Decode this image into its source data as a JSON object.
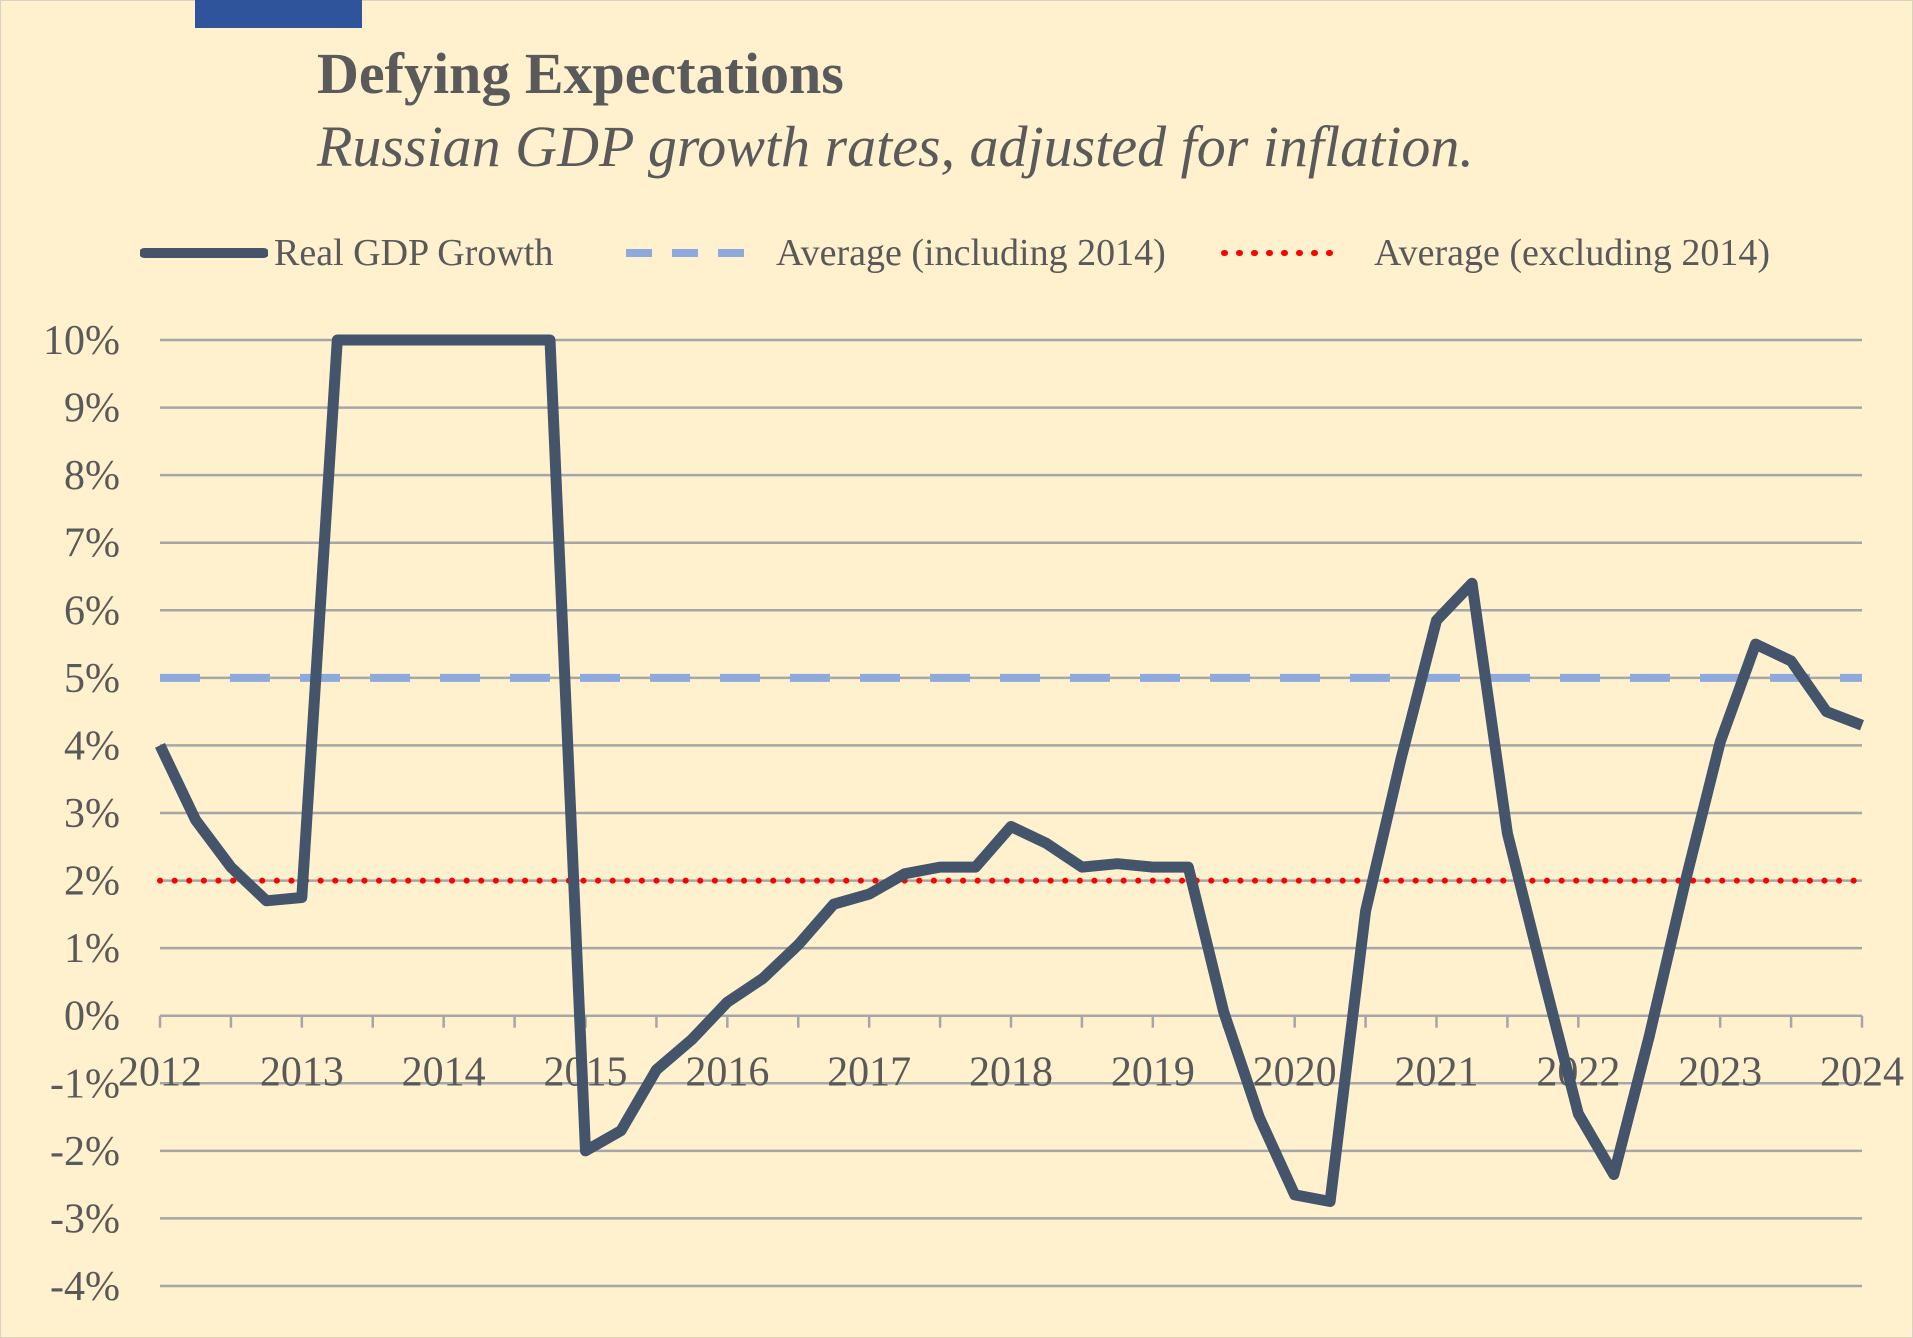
{
  "title": "Defying Expectations",
  "subtitle": "Russian GDP growth rates, adjusted for inflation.",
  "colors": {
    "background": "#FFF1CE",
    "accent_bar": "#2F549B",
    "series_line": "#44546A",
    "average_including": "#8EA9DB",
    "average_excluding": "#FF0000",
    "gridline": "#A6A6A6"
  },
  "chart_data": {
    "type": "line",
    "legend_placement": "top",
    "grid": true,
    "ylim": [
      -4,
      10
    ],
    "xlim": [
      2012,
      2024
    ],
    "y_ticks": [
      "10%",
      "9%",
      "8%",
      "7%",
      "6%",
      "5%",
      "4%",
      "3%",
      "2%",
      "1%",
      "0%",
      "-1%",
      "-2%",
      "-3%",
      "-4%"
    ],
    "y_tick_values": [
      10,
      9,
      8,
      7,
      6,
      5,
      4,
      3,
      2,
      1,
      0,
      -1,
      -2,
      -3,
      -4
    ],
    "x_ticks": [
      "2012",
      "2013",
      "2014",
      "2015",
      "2016",
      "2017",
      "2018",
      "2019",
      "2020",
      "2021",
      "2022",
      "2023",
      "2024"
    ],
    "x_tick_values": [
      2012,
      2013,
      2014,
      2015,
      2016,
      2017,
      2018,
      2019,
      2020,
      2021,
      2022,
      2023,
      2024
    ],
    "series": [
      {
        "name": "Real GDP Growth",
        "style": "solid",
        "x": [
          2012.0,
          2012.25,
          2012.5,
          2012.75,
          2013.0,
          2013.25,
          2014.75,
          2015.0,
          2015.25,
          2015.5,
          2015.75,
          2016.0,
          2016.25,
          2016.5,
          2016.75,
          2017.0,
          2017.25,
          2017.5,
          2017.75,
          2018.0,
          2018.25,
          2018.5,
          2018.75,
          2019.0,
          2019.25,
          2019.5,
          2019.75,
          2020.0,
          2020.25,
          2020.5,
          2020.75,
          2021.0,
          2021.25,
          2021.5,
          2021.75,
          2022.0,
          2022.25,
          2022.5,
          2022.75,
          2023.0,
          2023.25,
          2023.5,
          2023.75,
          2024.0
        ],
        "y": [
          4.0,
          2.9,
          2.2,
          1.7,
          1.75,
          10.0,
          10.0,
          -2.0,
          -1.7,
          -0.8,
          -0.35,
          0.2,
          0.55,
          1.05,
          1.65,
          1.8,
          2.1,
          2.2,
          2.2,
          2.8,
          2.55,
          2.2,
          2.25,
          2.2,
          2.2,
          0.05,
          -1.5,
          -2.65,
          -2.75,
          1.55,
          3.8,
          5.85,
          6.4,
          2.7,
          0.6,
          -1.45,
          -2.35,
          -0.3,
          1.95,
          4.05,
          5.5,
          5.25,
          4.5,
          4.3
        ]
      },
      {
        "name": "Average (including 2014)",
        "style": "dashed",
        "y_constant": 5.0
      },
      {
        "name": "Average (excluding 2014)",
        "style": "dotted",
        "y_constant": 2.0
      }
    ]
  }
}
